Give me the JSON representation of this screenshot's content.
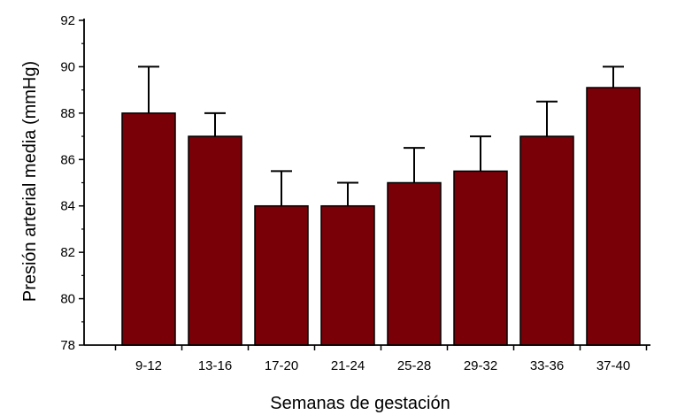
{
  "chart_data": {
    "type": "bar",
    "categories": [
      "9-12",
      "13-16",
      "17-20",
      "21-24",
      "25-28",
      "29-32",
      "33-36",
      "37-40"
    ],
    "values": [
      88,
      87,
      84,
      84,
      85,
      85.5,
      87,
      89.1
    ],
    "error_upper": [
      90,
      88,
      85.5,
      85,
      86.5,
      87,
      88.5,
      90
    ],
    "xlabel": "Semanas de gestación",
    "ylabel": "Presión arterial media (mmHg)",
    "ylim": [
      78,
      92
    ],
    "yticks": [
      78,
      80,
      82,
      84,
      86,
      88,
      90,
      92
    ],
    "grid": false,
    "colors": {
      "bar_fill": "#7a0008",
      "bar_stroke": "#000000",
      "axis": "#000000"
    }
  }
}
